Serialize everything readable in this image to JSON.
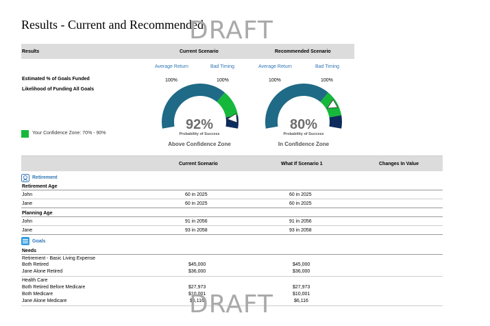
{
  "page": {
    "title": "Results - Current and Recommended",
    "watermark": "DRAFT"
  },
  "summary": {
    "col_results": "Results",
    "col_current": "Current Scenario",
    "col_recommended": "Recommended Scenario",
    "avg_return": "Average Return",
    "bad_timing": "Bad Timing",
    "row_goals_funded": "Estimated % of Goals Funded",
    "row_likelihood": "Likelihood of Funding All Goals",
    "current_avg": "100%",
    "current_bad": "100%",
    "recommended_avg": "100%",
    "recommended_bad": "100%",
    "confidence_legend": "Your Confidence Zone: 70% - 90%",
    "probability_label": "Probability of Success",
    "current_gauge": {
      "value": 92,
      "label": "92%",
      "zone": "Above Confidence Zone"
    },
    "recommended_gauge": {
      "value": 80,
      "label": "80%",
      "zone": "In Confidence Zone"
    },
    "colors": {
      "gauge_main": "#1f6a86",
      "gauge_confidence": "#16b83b",
      "gauge_high": "#0d2c5c"
    }
  },
  "table": {
    "col_current": "Current Scenario",
    "col_whatif": "What If Scenario 1",
    "col_changes": "Changes In Value",
    "retirement": {
      "section_label": "Retirement",
      "retirement_age_label": "Retirement Age",
      "retirement_rows": [
        {
          "name": "John",
          "current": "60 in 2025",
          "whatif": "60 in 2025"
        },
        {
          "name": "Jane",
          "current": "60 in 2025",
          "whatif": "60 in 2025"
        }
      ],
      "planning_age_label": "Planning Age",
      "planning_rows": [
        {
          "name": "John",
          "current": "91 in 2056",
          "whatif": "91 in 2056"
        },
        {
          "name": "Jane",
          "current": "93 in 2058",
          "whatif": "93 in 2058"
        }
      ]
    },
    "goals": {
      "section_label": "Goals",
      "needs_label": "Needs",
      "basic_living_label": "Retirement - Basic Living Expense",
      "basic_rows": [
        {
          "name": "Both Retired",
          "current": "$45,000",
          "whatif": "$45,000"
        },
        {
          "name": "Jane Alone Retired",
          "current": "$36,000",
          "whatif": "$36,000"
        }
      ],
      "health_care_label": "Health Care",
      "health_rows": [
        {
          "name": "Both Retired Before Medicare",
          "current": "$27,973",
          "whatif": "$27,973"
        },
        {
          "name": "Both Medicare",
          "current": "$10,001",
          "whatif": "$10,001"
        },
        {
          "name": "Jane Alone Medicare",
          "current": "$6,116",
          "whatif": "$6,116"
        }
      ]
    }
  }
}
